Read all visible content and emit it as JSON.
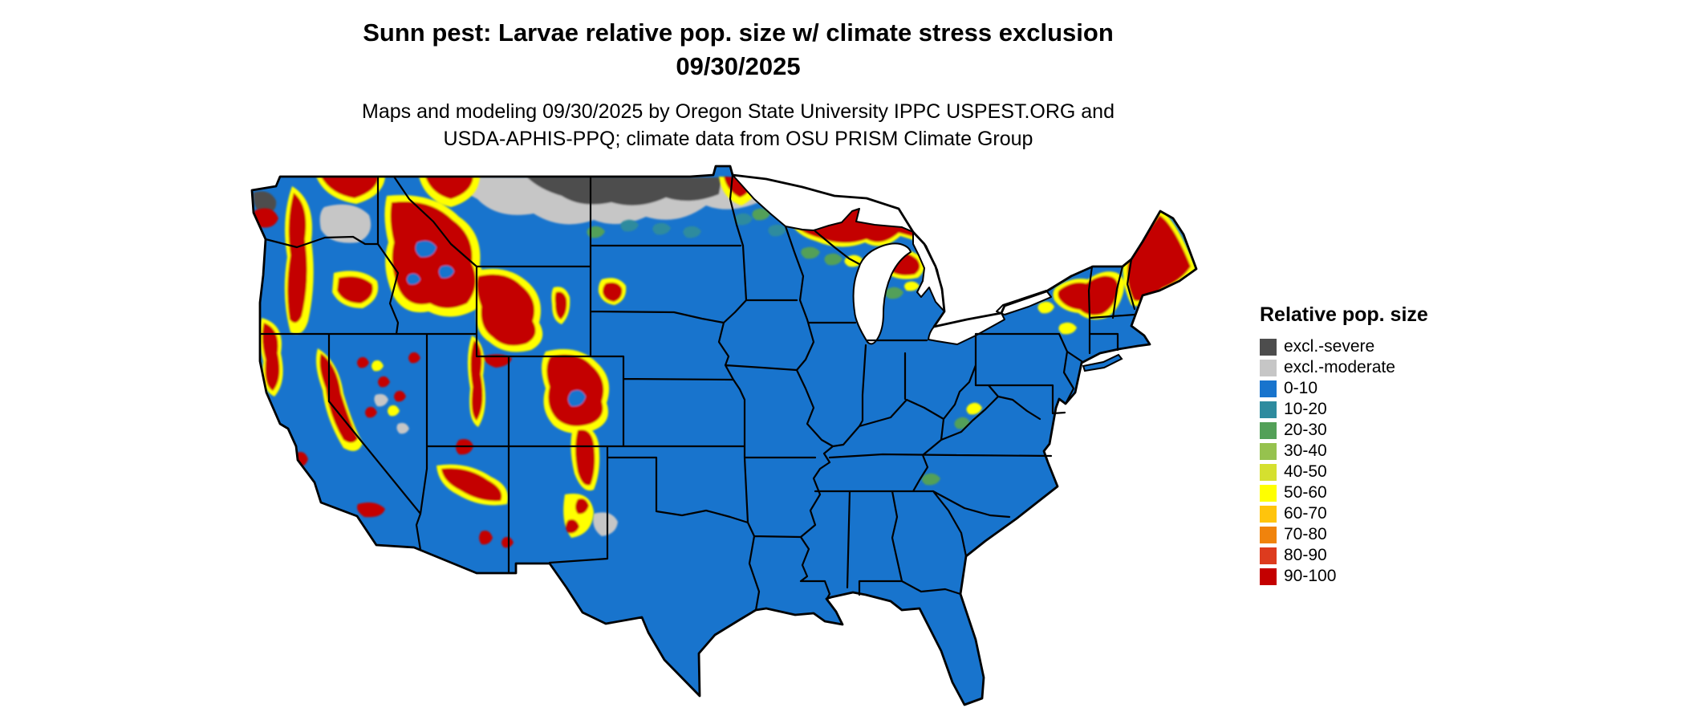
{
  "title": {
    "line1": "Sunn pest: Larvae relative pop. size w/ climate stress exclusion",
    "line2": "09/30/2025"
  },
  "subtitle": {
    "line1": "Maps and modeling 09/30/2025 by Oregon State University IPPC USPEST.ORG and",
    "line2": "USDA-APHIS-PPQ; climate data from OSU PRISM Climate Group"
  },
  "legend": {
    "title": "Relative pop. size",
    "items": [
      {
        "key": "excl-severe",
        "label": "excl.-severe",
        "color": "#4d4d4d"
      },
      {
        "key": "excl-moderate",
        "label": "excl.-moderate",
        "color": "#c6c6c6"
      },
      {
        "key": "v0-10",
        "label": "0-10",
        "color": "#1874cd"
      },
      {
        "key": "v10-20",
        "label": "10-20",
        "color": "#2e8b9e"
      },
      {
        "key": "v20-30",
        "label": "20-30",
        "color": "#53a058"
      },
      {
        "key": "v30-40",
        "label": "30-40",
        "color": "#96c24e"
      },
      {
        "key": "v40-50",
        "label": "40-50",
        "color": "#d5e02f"
      },
      {
        "key": "v50-60",
        "label": "50-60",
        "color": "#ffff00"
      },
      {
        "key": "v60-70",
        "label": "60-70",
        "color": "#ffc40c"
      },
      {
        "key": "v70-80",
        "label": "70-80",
        "color": "#f0830c"
      },
      {
        "key": "v80-90",
        "label": "80-90",
        "color": "#dd3b1e"
      },
      {
        "key": "v90-100",
        "label": "90-100",
        "color": "#c40000"
      }
    ]
  },
  "map": {
    "region": "Contiguous United States",
    "base_class": "0-10",
    "water_color": "#ffffff",
    "border_color": "#000000",
    "patterns": {
      "northern_plains": "excl.-severe and excl.-moderate exclusion band along Canadian border (MT/ND/MN)",
      "mountain_west": "high relative pop. (50-100) over Cascades, Sierra Nevada, Rockies",
      "upper_midwest": "high relative pop. over northern Wisconsin and Michigan",
      "new_england": "high relative pop. over Maine, Vermont, New Hampshire, Adirondacks",
      "central_and_southeast": "low relative pop. (0-10)"
    }
  }
}
